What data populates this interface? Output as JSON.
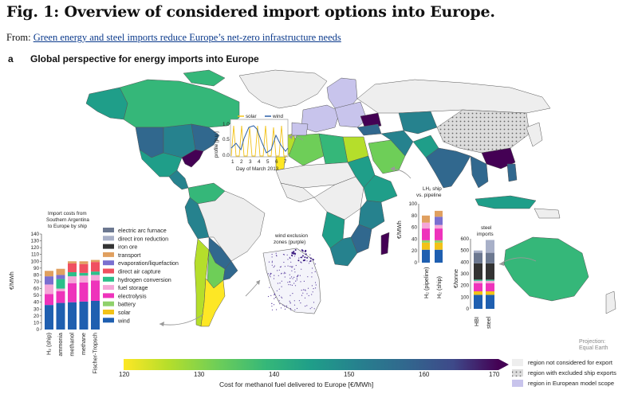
{
  "header": {
    "title": "Fig. 1: Overview of considered import options into Europe.",
    "from_prefix": "From:",
    "from_link": "Green energy and steel imports reduce Europe’s net-zero infrastructure needs",
    "panel_label": "a",
    "panel_title": "Global perspective for energy imports into Europe"
  },
  "colors": {
    "viridis": [
      "#fde725",
      "#b5de2b",
      "#6ece58",
      "#35b779",
      "#1f9e89",
      "#26828e",
      "#31688e",
      "#3e4989",
      "#482878",
      "#440154"
    ],
    "not_considered": "#eeeeee",
    "european_scope": "#c8c4ec"
  },
  "wind_solar_inset": {
    "ylabel": "profile [p.u.]",
    "xlabel": "Day of March 2013",
    "legend": [
      "solar",
      "wind"
    ],
    "yticks": [
      "0.0",
      "0.5",
      "1.0"
    ],
    "xticks": [
      "1",
      "2",
      "3",
      "4",
      "5",
      "6",
      "7"
    ]
  },
  "import_costs_chart": {
    "title_lines": [
      "Import costs from",
      "Southern Argentina",
      "to Europe by ship"
    ],
    "ylabel": "€/MWh",
    "yticks": [
      "0",
      "10",
      "20",
      "30",
      "40",
      "50",
      "60",
      "70",
      "80",
      "90",
      "100",
      "110",
      "120",
      "130",
      "140"
    ],
    "ymax": 140,
    "categories": [
      "H₂ (ship)",
      "ammonia",
      "methanol",
      "methane",
      "Fischer-Tropsch"
    ],
    "series": [
      {
        "name": "wind",
        "color": "#1f5fb0",
        "values": [
          36,
          39,
          40,
          41,
          42
        ]
      },
      {
        "name": "solar",
        "color": "#f2c218",
        "values": [
          0,
          0,
          0,
          0,
          0
        ]
      },
      {
        "name": "battery",
        "color": "#8fd16b",
        "values": [
          0,
          0,
          0,
          0,
          0
        ]
      },
      {
        "name": "electrolysis",
        "color": "#ee33bb",
        "values": [
          16,
          17,
          28,
          28,
          30
        ]
      },
      {
        "name": "fuel storage",
        "color": "#f5a6d8",
        "values": [
          14,
          4,
          10,
          10,
          8
        ]
      },
      {
        "name": "hydrogen conversion",
        "color": "#2bbf8a",
        "values": [
          0,
          14,
          6,
          4,
          5
        ]
      },
      {
        "name": "direct air capture",
        "color": "#f05060",
        "values": [
          0,
          0,
          13,
          13,
          14
        ]
      },
      {
        "name": "evaporation/liquefaction",
        "color": "#7a6fd0",
        "values": [
          12,
          6,
          0,
          0,
          0
        ]
      },
      {
        "name": "transport",
        "color": "#e0a060",
        "values": [
          8,
          9,
          3,
          4,
          3
        ]
      },
      {
        "name": "iron ore",
        "color": "#333333",
        "values": [
          0,
          0,
          0,
          0,
          0
        ]
      },
      {
        "name": "direct iron reduction",
        "color": "#a8b0c8",
        "values": [
          0,
          0,
          0,
          0,
          0
        ]
      },
      {
        "name": "electric arc furnace",
        "color": "#6c7890",
        "values": [
          0,
          0,
          0,
          0,
          0
        ]
      }
    ],
    "legend_order": [
      "electric arc furnace",
      "direct iron reduction",
      "iron ore",
      "transport",
      "evaporation/liquefaction",
      "direct air capture",
      "hydrogen conversion",
      "fuel storage",
      "electrolysis",
      "battery",
      "solar",
      "wind"
    ]
  },
  "wind_exclusion": {
    "title_lines": [
      "wind exclusion",
      "zones (purple)"
    ]
  },
  "lh2_chart": {
    "title_lines": [
      "LH₂ ship",
      "vs. pipeline"
    ],
    "ylabel": "€/MWh",
    "yticks": [
      "0",
      "20",
      "40",
      "60",
      "80",
      "100"
    ],
    "ymax": 100,
    "categories": [
      "H₂ (pipeline)",
      "H₂ (ship)"
    ],
    "stacks": [
      [
        {
          "c": "#1f5fb0",
          "v": 22
        },
        {
          "c": "#f2c218",
          "v": 12
        },
        {
          "c": "#8fd16b",
          "v": 4
        },
        {
          "c": "#ee33bb",
          "v": 20
        },
        {
          "c": "#f5a6d8",
          "v": 10
        },
        {
          "c": "#e0a060",
          "v": 12
        }
      ],
      [
        {
          "c": "#1f5fb0",
          "v": 22
        },
        {
          "c": "#f2c218",
          "v": 12
        },
        {
          "c": "#8fd16b",
          "v": 4
        },
        {
          "c": "#ee33bb",
          "v": 20
        },
        {
          "c": "#f5a6d8",
          "v": 6
        },
        {
          "c": "#7a6fd0",
          "v": 14
        },
        {
          "c": "#e0a060",
          "v": 10
        }
      ]
    ]
  },
  "steel_chart": {
    "title_lines": [
      "steel",
      "imports"
    ],
    "ylabel": "€/tonne",
    "yticks": [
      "0",
      "100",
      "200",
      "300",
      "400",
      "500",
      "600"
    ],
    "ymax": 600,
    "categories": [
      "HBI",
      "steel"
    ],
    "stacks": [
      [
        {
          "c": "#1f5fb0",
          "v": 120
        },
        {
          "c": "#f2c218",
          "v": 30
        },
        {
          "c": "#ee33bb",
          "v": 70
        },
        {
          "c": "#f5a6d8",
          "v": 20
        },
        {
          "c": "#2bbf8a",
          "v": 10
        },
        {
          "c": "#333333",
          "v": 140
        },
        {
          "c": "#6c7890",
          "v": 90
        },
        {
          "c": "#a8b0c8",
          "v": 20
        }
      ],
      [
        {
          "c": "#1f5fb0",
          "v": 120
        },
        {
          "c": "#f2c218",
          "v": 30
        },
        {
          "c": "#ee33bb",
          "v": 70
        },
        {
          "c": "#f5a6d8",
          "v": 20
        },
        {
          "c": "#2bbf8a",
          "v": 10
        },
        {
          "c": "#333333",
          "v": 140
        },
        {
          "c": "#6c7890",
          "v": 90
        },
        {
          "c": "#a8b0c8",
          "v": 110
        }
      ]
    ]
  },
  "colorbar": {
    "ticks": [
      "120",
      "130",
      "140",
      "150",
      "160",
      "170"
    ],
    "label": "Cost for methanol fuel delivered to Europe [€/MWh]"
  },
  "legend": [
    {
      "label": "region not considered for export",
      "style": "plain",
      "color": "#eeeeee"
    },
    {
      "label": "region with excluded ship exports",
      "style": "hatched",
      "color": "#dddddd"
    },
    {
      "label": "region in European model scope",
      "style": "plain",
      "color": "#c8c4ec"
    }
  ],
  "projection_lines": [
    "Projection:",
    "Equal Earth"
  ]
}
